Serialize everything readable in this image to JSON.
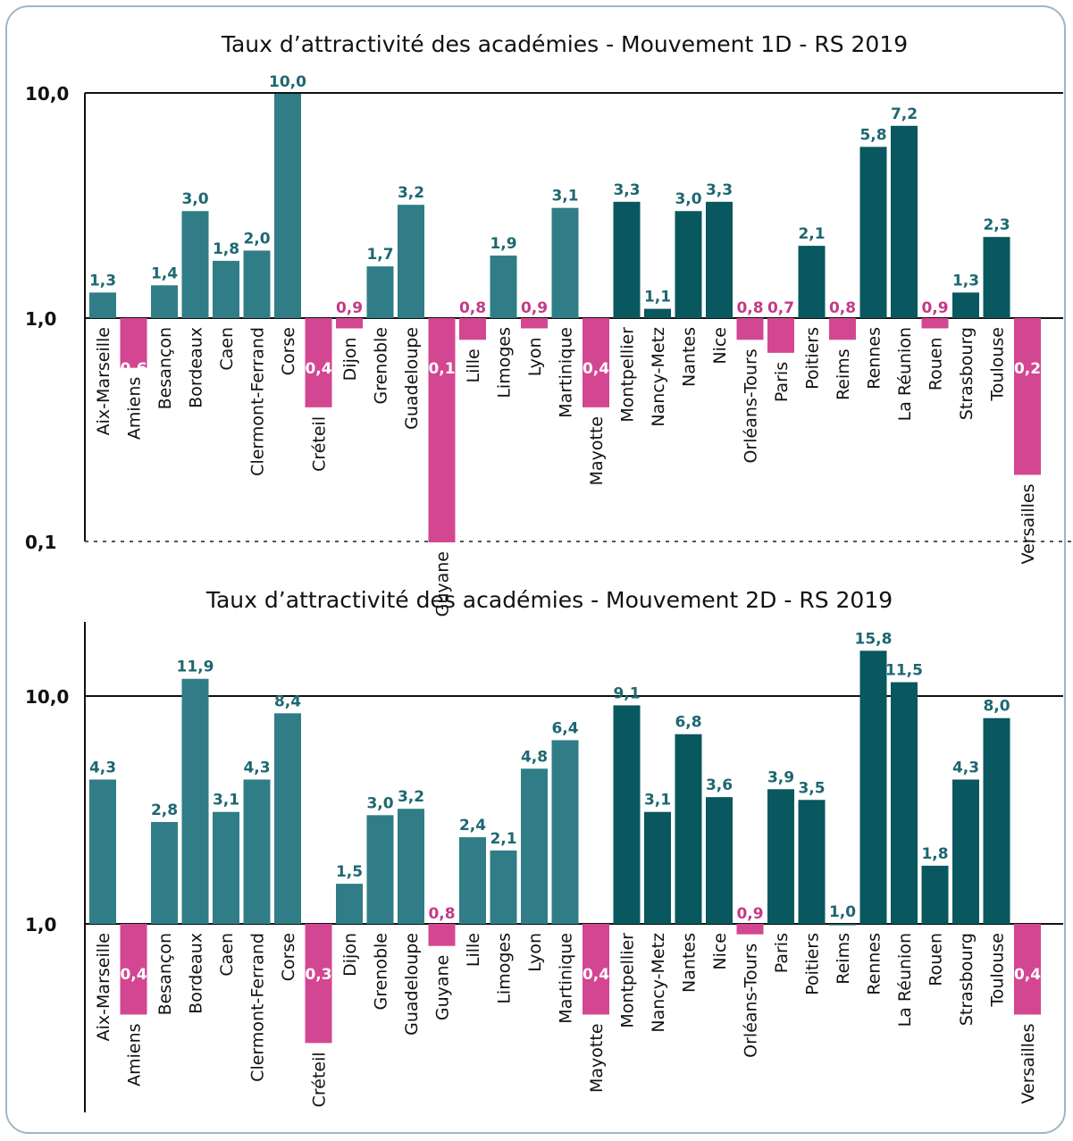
{
  "colors": {
    "teal_light": "#307d87",
    "teal_dark": "#09575f",
    "pink": "#d34692",
    "value_teal": "#1d6870",
    "value_pink": "#c43a87",
    "axis": "#111111"
  },
  "chart_data": [
    {
      "type": "bar",
      "title": "Taux d’attractivité des académies - Mouvement 1D - RS 2019",
      "y_scale": "log",
      "ylim": [
        0.1,
        10
      ],
      "yticks": [
        "10,0",
        "1,0",
        "0,1"
      ],
      "categories": [
        "Aix-Marseille",
        "Amiens",
        "Besançon",
        "Bordeaux",
        "Caen",
        "Clermont-Ferrand",
        "Corse",
        "Créteil",
        "Dijon",
        "Grenoble",
        "Guadeloupe",
        "Guyane",
        "Lille",
        "Limoges",
        "Lyon",
        "Martinique",
        "Mayotte",
        "Montpellier",
        "Nancy-Metz",
        "Nantes",
        "Nice",
        "Orléans-Tours",
        "Paris",
        "Poitiers",
        "Reims",
        "Rennes",
        "La Réunion",
        "Rouen",
        "Strasbourg",
        "Toulouse",
        "Versailles"
      ],
      "values": [
        1.3,
        0.6,
        1.4,
        3.0,
        1.8,
        2.0,
        10.0,
        0.4,
        0.9,
        1.7,
        3.2,
        0.1,
        0.8,
        1.9,
        0.9,
        3.1,
        0.4,
        3.3,
        1.1,
        3.0,
        3.3,
        0.8,
        0.7,
        2.1,
        0.8,
        5.8,
        7.2,
        0.9,
        1.3,
        2.3,
        0.2
      ],
      "labels": [
        "1,3",
        "0,6",
        "1,4",
        "3,0",
        "1,8",
        "2,0",
        "10,0",
        "0,4",
        "0,9",
        "1,7",
        "3,2",
        "0,1",
        "0,8",
        "1,9",
        "0,9",
        "3,1",
        "0,4",
        "3,3",
        "1,1",
        "3,0",
        "3,3",
        "0,8",
        "0,7",
        "2,1",
        "0,8",
        "5,8",
        "7,2",
        "0,9",
        "1,3",
        "2,3",
        "0,2"
      ],
      "grid": false
    },
    {
      "type": "bar",
      "title": "Taux d’attractivité des académies - Mouvement 2D - RS 2019",
      "y_scale": "log",
      "ylim": [
        0.2,
        20
      ],
      "yticks": [
        "10,0",
        "1,0"
      ],
      "categories": [
        "Aix-Marseille",
        "Amiens",
        "Besançon",
        "Bordeaux",
        "Caen",
        "Clermont-Ferrand",
        "Corse",
        "Créteil",
        "Dijon",
        "Grenoble",
        "Guadeloupe",
        "Guyane",
        "Lille",
        "Limoges",
        "Lyon",
        "Martinique",
        "Mayotte",
        "Montpellier",
        "Nancy-Metz",
        "Nantes",
        "Nice",
        "Orléans-Tours",
        "Paris",
        "Poitiers",
        "Reims",
        "Rennes",
        "La Réunion",
        "Rouen",
        "Strasbourg",
        "Toulouse",
        "Versailles"
      ],
      "values": [
        4.3,
        0.4,
        2.8,
        11.9,
        3.1,
        4.3,
        8.4,
        0.3,
        1.5,
        3.0,
        3.2,
        0.8,
        2.4,
        2.1,
        4.8,
        6.4,
        0.4,
        9.1,
        3.1,
        6.8,
        3.6,
        0.9,
        3.9,
        3.5,
        1.0,
        15.8,
        11.5,
        1.8,
        4.3,
        8.0,
        0.4
      ],
      "labels": [
        "4,3",
        "0,4",
        "2,8",
        "11,9",
        "3,1",
        "4,3",
        "8,4",
        "0,3",
        "1,5",
        "3,0",
        "3,2",
        "0,8",
        "2,4",
        "2,1",
        "4,8",
        "6,4",
        "0,4",
        "9,1",
        "3,1",
        "6,8",
        "3,6",
        "0,9",
        "3,9",
        "3,5",
        "1,0",
        "15,8",
        "11,5",
        "1,8",
        "4,3",
        "8,0",
        "0,4"
      ],
      "grid": false
    }
  ]
}
